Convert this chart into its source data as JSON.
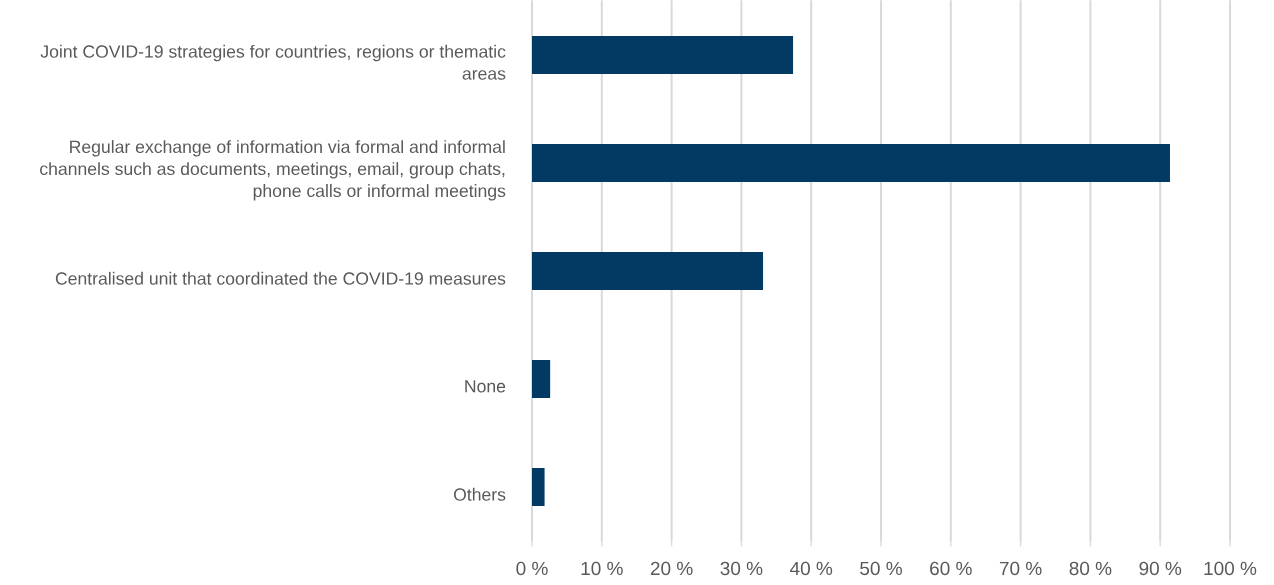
{
  "chart_data": {
    "type": "bar",
    "orientation": "horizontal",
    "categories": [
      "Joint COVID-19 strategies for countries, regions or thematic areas",
      "Regular exchange of information via formal and informal channels such as documents, meetings, email, group chats, phone calls or informal meetings",
      "Centralised unit that coordinated the COVID-19 measures",
      "None",
      "Others"
    ],
    "values": [
      37.4,
      91.4,
      33.1,
      2.6,
      1.8
    ],
    "color": "#023a63",
    "xlim": [
      0,
      100
    ],
    "xticks": [
      {
        "value": 0,
        "label": "0 %"
      },
      {
        "value": 10,
        "label": "10 %"
      },
      {
        "value": 20,
        "label": "20 %"
      },
      {
        "value": 30,
        "label": "30 %"
      },
      {
        "value": 40,
        "label": "40 %"
      },
      {
        "value": 50,
        "label": "50 %"
      },
      {
        "value": 60,
        "label": "60 %"
      },
      {
        "value": 70,
        "label": "70 %"
      },
      {
        "value": 80,
        "label": "80 %"
      },
      {
        "value": 90,
        "label": "90 %"
      },
      {
        "value": 100,
        "label": "100 %"
      }
    ],
    "grid": "x"
  }
}
